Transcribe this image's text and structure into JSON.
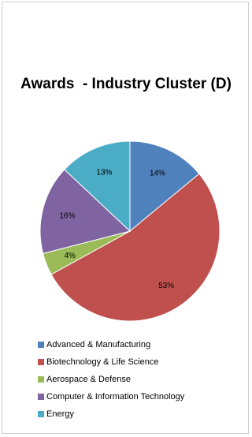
{
  "chart_data": {
    "type": "pie",
    "title": "Awards  - Industry Cluster (D)",
    "categories": [
      "Advanced & Manufacturing",
      "Biotechnology & Life Science",
      "Aerospace & Defense",
      "Computer & Information Technology",
      "Energy"
    ],
    "values": [
      14,
      53,
      4,
      16,
      13
    ],
    "labels": [
      "14%",
      "53%",
      "4%",
      "16%",
      "13%"
    ],
    "colors": [
      "#4f81bd",
      "#c0504d",
      "#9bbb59",
      "#8064a2",
      "#4bacc6"
    ],
    "legend_position": "bottom"
  }
}
